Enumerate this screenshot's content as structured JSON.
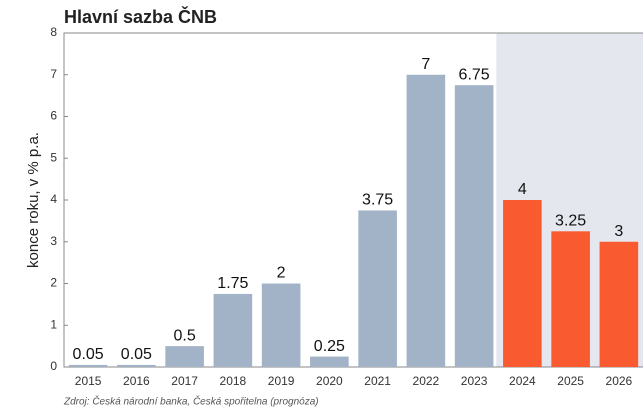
{
  "chart_data": {
    "type": "bar",
    "title": "Hlavní sazba ČNB",
    "y_label": "konce roku, v % p.a.",
    "source": "Zdroj: Česká národní banka, Česká spořitelna (prognóza)",
    "categories": [
      "2015",
      "2016",
      "2017",
      "2018",
      "2019",
      "2020",
      "2021",
      "2022",
      "2023",
      "2024",
      "2025",
      "2026"
    ],
    "values": [
      0.05,
      0.05,
      0.5,
      1.75,
      2,
      0.25,
      3.75,
      7,
      6.75,
      4,
      3.25,
      3
    ],
    "colors": [
      "#a3b3c7",
      "#a3b3c7",
      "#a3b3c7",
      "#a3b3c7",
      "#a3b3c7",
      "#a3b3c7",
      "#a3b3c7",
      "#a3b3c7",
      "#a3b3c7",
      "#fa5a2f",
      "#fa5a2f",
      "#fa5a2f"
    ],
    "forecast_shade": {
      "from": "2024",
      "color": "#e4e8ee"
    },
    "ylim": [
      0,
      8
    ],
    "yticks": [
      0,
      1,
      2,
      3,
      4,
      5,
      6,
      7,
      8
    ],
    "grid": false
  }
}
